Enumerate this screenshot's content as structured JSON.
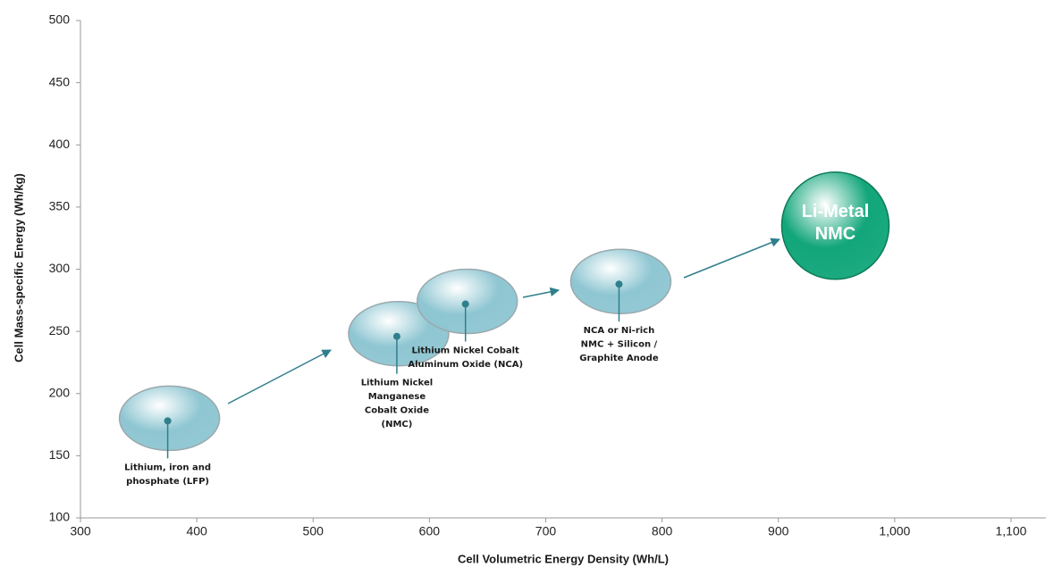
{
  "chart_data": {
    "type": "scatter",
    "x_label": "Cell Volumetric Energy Density (Wh/L)",
    "y_label": "Cell Mass-specific Energy (Wh/kg)",
    "xlim": [
      300,
      1130
    ],
    "ylim": [
      100,
      500
    ],
    "xticks": [
      300,
      400,
      500,
      600,
      700,
      800,
      900,
      {
        "value": 1000,
        "label": "1,000"
      },
      {
        "value": 1100,
        "label": "1,100"
      }
    ],
    "yticks": [
      100,
      150,
      200,
      250,
      300,
      350,
      400,
      450,
      500
    ],
    "grid": false,
    "x": [
      375,
      572,
      631,
      763,
      949
    ],
    "values": [
      178,
      246,
      272,
      288,
      335
    ],
    "labels": [
      [
        "Lithium, iron and",
        "phosphate (LFP)"
      ],
      [
        "Lithium Nickel",
        "Manganese",
        "Cobalt Oxide",
        "(NMC)"
      ],
      [
        "Lithium Nickel Cobalt",
        "Aluminum Oxide (NCA)"
      ],
      [
        "NCA or Ni-rich",
        "NMC + Silicon /",
        "Graphite Anode"
      ],
      [
        "Li-Metal",
        "NMC"
      ]
    ],
    "colors": [
      "#8ec6d2",
      "#8ec6d2",
      "#8ec6d2",
      "#8ec6d2",
      "#12a67a"
    ],
    "markers": [
      "ellipse",
      "ellipse",
      "ellipse",
      "ellipse",
      "circle"
    ]
  }
}
